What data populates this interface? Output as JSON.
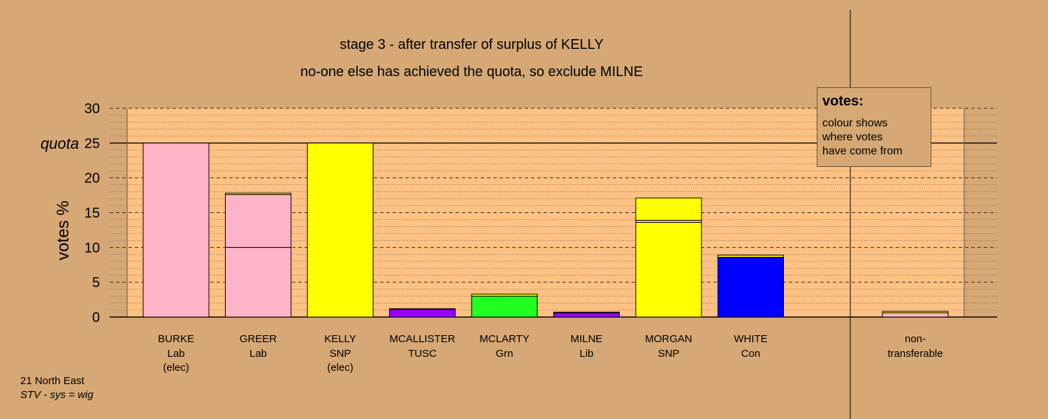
{
  "chart_data": {
    "type": "bar",
    "stacked": true,
    "title": "stage 3 - after transfer of surplus of KELLY",
    "subtitle": "no-one else has achieved the quota, so exclude MILNE",
    "ylabel": "votes %",
    "ylim": [
      0,
      30
    ],
    "yticks": [
      "0",
      "5",
      "10",
      "15",
      "20",
      "25",
      "30"
    ],
    "quota": {
      "value": 25,
      "label": "quota"
    },
    "grid": true,
    "categories": [
      {
        "name": "BURKE",
        "party": "Lab",
        "note": "(elec)"
      },
      {
        "name": "GREER",
        "party": "Lab",
        "note": ""
      },
      {
        "name": "KELLY",
        "party": "SNP",
        "note": "(elec)"
      },
      {
        "name": "MCALLISTER",
        "party": "TUSC",
        "note": ""
      },
      {
        "name": "MCLARTY",
        "party": "Grn",
        "note": ""
      },
      {
        "name": "MILNE",
        "party": "Lib",
        "note": ""
      },
      {
        "name": "MORGAN",
        "party": "SNP",
        "note": ""
      },
      {
        "name": "WHITE",
        "party": "Con",
        "note": ""
      }
    ],
    "segments": [
      [
        {
          "value": 25.0,
          "color": "#ffb3c6"
        }
      ],
      [
        {
          "value": 10.0,
          "color": "#ffb3c6"
        },
        {
          "value": 7.6,
          "color": "#ffb3c6"
        },
        {
          "value": 0.2,
          "color": "#ffff00"
        }
      ],
      [
        {
          "value": 25.0,
          "color": "#ffff00"
        }
      ],
      [
        {
          "value": 1.1,
          "color": "#9900ff"
        },
        {
          "value": 0.1,
          "color": "#ffff00"
        }
      ],
      [
        {
          "value": 3.0,
          "color": "#22ff22"
        },
        {
          "value": 0.3,
          "color": "#ffff00"
        }
      ],
      [
        {
          "value": 0.6,
          "color": "#9900ff"
        },
        {
          "value": 0.1,
          "color": "#ffff00"
        }
      ],
      [
        {
          "value": 13.6,
          "color": "#ffff00"
        },
        {
          "value": 0.3,
          "color": "#ffb3c6"
        },
        {
          "value": 3.2,
          "color": "#ffff00"
        }
      ],
      [
        {
          "value": 8.6,
          "color": "#0000ff"
        },
        {
          "value": 0.3,
          "color": "#ffff00"
        }
      ]
    ],
    "non_transferable": {
      "label_line1": "non-",
      "label_line2": "transferable",
      "segments": [
        {
          "value": 0.6,
          "color": "#ffb3c6"
        },
        {
          "value": 0.2,
          "color": "#ffff00"
        }
      ]
    },
    "legend": {
      "title": "votes:",
      "lines": [
        "colour shows",
        "where votes",
        "have come from"
      ]
    },
    "colors": {
      "background": "#d5a875",
      "plot_background": "#fcc183"
    }
  },
  "footer": {
    "line1": "21 North East",
    "line2": "STV - sys = wig"
  }
}
